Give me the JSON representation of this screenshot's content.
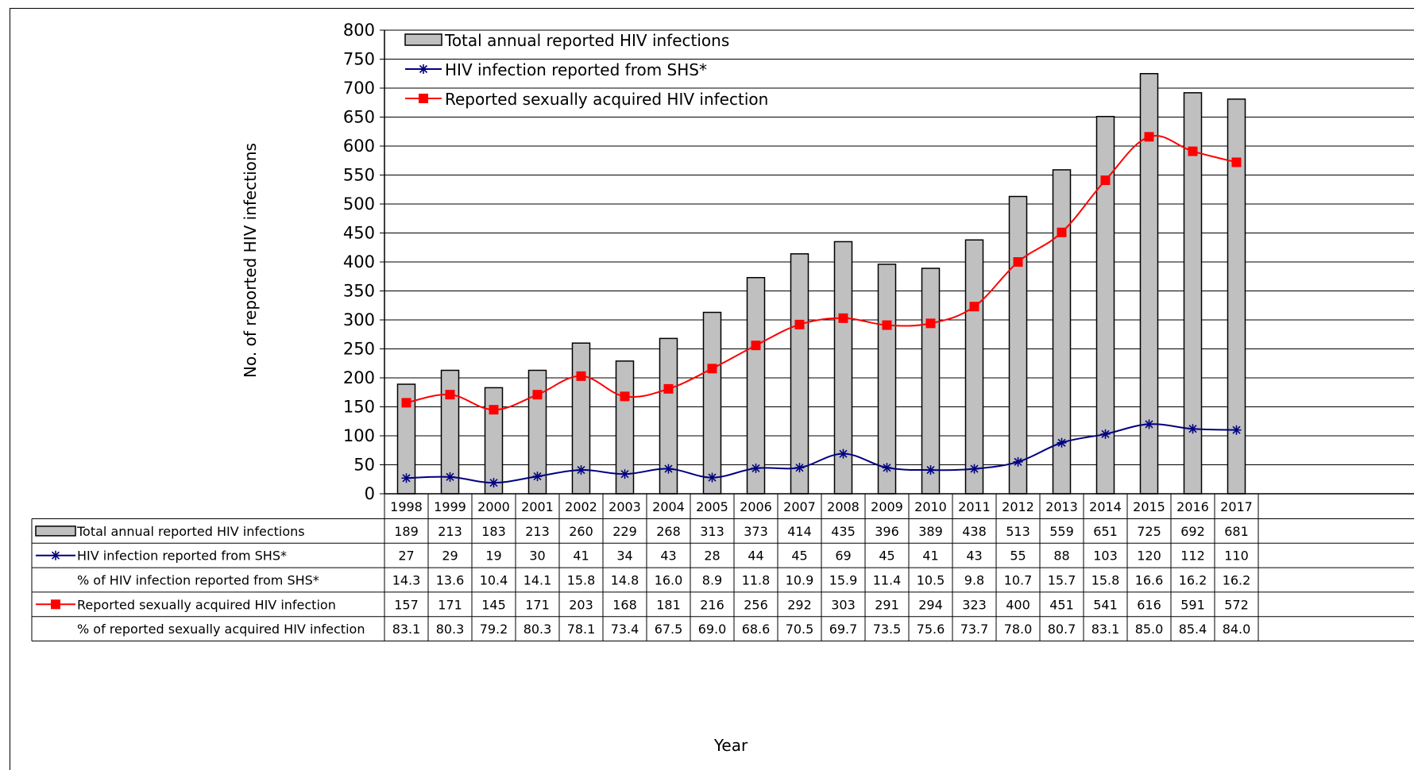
{
  "chart_data": {
    "type": "bar",
    "ylabel": "No. of reported HIV infections",
    "xlabel": "Year",
    "ylim": [
      0,
      800
    ],
    "ystep": 50,
    "grid": true,
    "legend_position": "top-left",
    "categories": [
      "1998",
      "1999",
      "2000",
      "2001",
      "2002",
      "2003",
      "2004",
      "2005",
      "2006",
      "2007",
      "2008",
      "2009",
      "2010",
      "2011",
      "2012",
      "2013",
      "2014",
      "2015",
      "2016",
      "2017"
    ],
    "series": [
      {
        "name": "Total annual reported HIV infections",
        "kind": "bar",
        "color": "#c0c0c0",
        "values": [
          189,
          213,
          183,
          213,
          260,
          229,
          268,
          313,
          373,
          414,
          435,
          396,
          389,
          438,
          513,
          559,
          651,
          725,
          692,
          681
        ]
      },
      {
        "name": "HIV infection reported from SHS*",
        "kind": "line",
        "marker": "asterisk",
        "color": "#000080",
        "values": [
          27,
          29,
          19,
          30,
          41,
          34,
          43,
          28,
          44,
          45,
          69,
          45,
          41,
          43,
          55,
          88,
          103,
          120,
          112,
          110
        ]
      },
      {
        "name": "Reported sexually acquired HIV infection",
        "kind": "line",
        "marker": "square",
        "color": "#ff0000",
        "values": [
          157,
          171,
          145,
          171,
          203,
          168,
          181,
          216,
          256,
          292,
          303,
          291,
          294,
          323,
          400,
          451,
          541,
          616,
          591,
          572
        ]
      }
    ],
    "table": [
      {
        "label": "Total annual reported HIV infections",
        "legend": "bar",
        "cells": [
          "189",
          "213",
          "183",
          "213",
          "260",
          "229",
          "268",
          "313",
          "373",
          "414",
          "435",
          "396",
          "389",
          "438",
          "513",
          "559",
          "651",
          "725",
          "692",
          "681"
        ]
      },
      {
        "label": "HIV infection reported from SHS*",
        "legend": "asterisk",
        "cells": [
          "27",
          "29",
          "19",
          "30",
          "41",
          "34",
          "43",
          "28",
          "44",
          "45",
          "69",
          "45",
          "41",
          "43",
          "55",
          "88",
          "103",
          "120",
          "112",
          "110"
        ]
      },
      {
        "label": "% of HIV infection reported from SHS*",
        "legend": "none",
        "cells": [
          "14.3",
          "13.6",
          "10.4",
          "14.1",
          "15.8",
          "14.8",
          "16.0",
          "8.9",
          "11.8",
          "10.9",
          "15.9",
          "11.4",
          "10.5",
          "9.8",
          "10.7",
          "15.7",
          "15.8",
          "16.6",
          "16.2",
          "16.2"
        ]
      },
      {
        "label": "Reported sexually acquired HIV infection",
        "legend": "square",
        "cells": [
          "157",
          "171",
          "145",
          "171",
          "203",
          "168",
          "181",
          "216",
          "256",
          "292",
          "303",
          "291",
          "294",
          "323",
          "400",
          "451",
          "541",
          "616",
          "591",
          "572"
        ]
      },
      {
        "label": "% of reported sexually acquired HIV infection",
        "legend": "none",
        "cells": [
          "83.1",
          "80.3",
          "79.2",
          "80.3",
          "78.1",
          "73.4",
          "67.5",
          "69.0",
          "68.6",
          "70.5",
          "69.7",
          "73.5",
          "75.6",
          "73.7",
          "78.0",
          "80.7",
          "83.1",
          "85.0",
          "85.4",
          "84.0"
        ]
      }
    ]
  }
}
